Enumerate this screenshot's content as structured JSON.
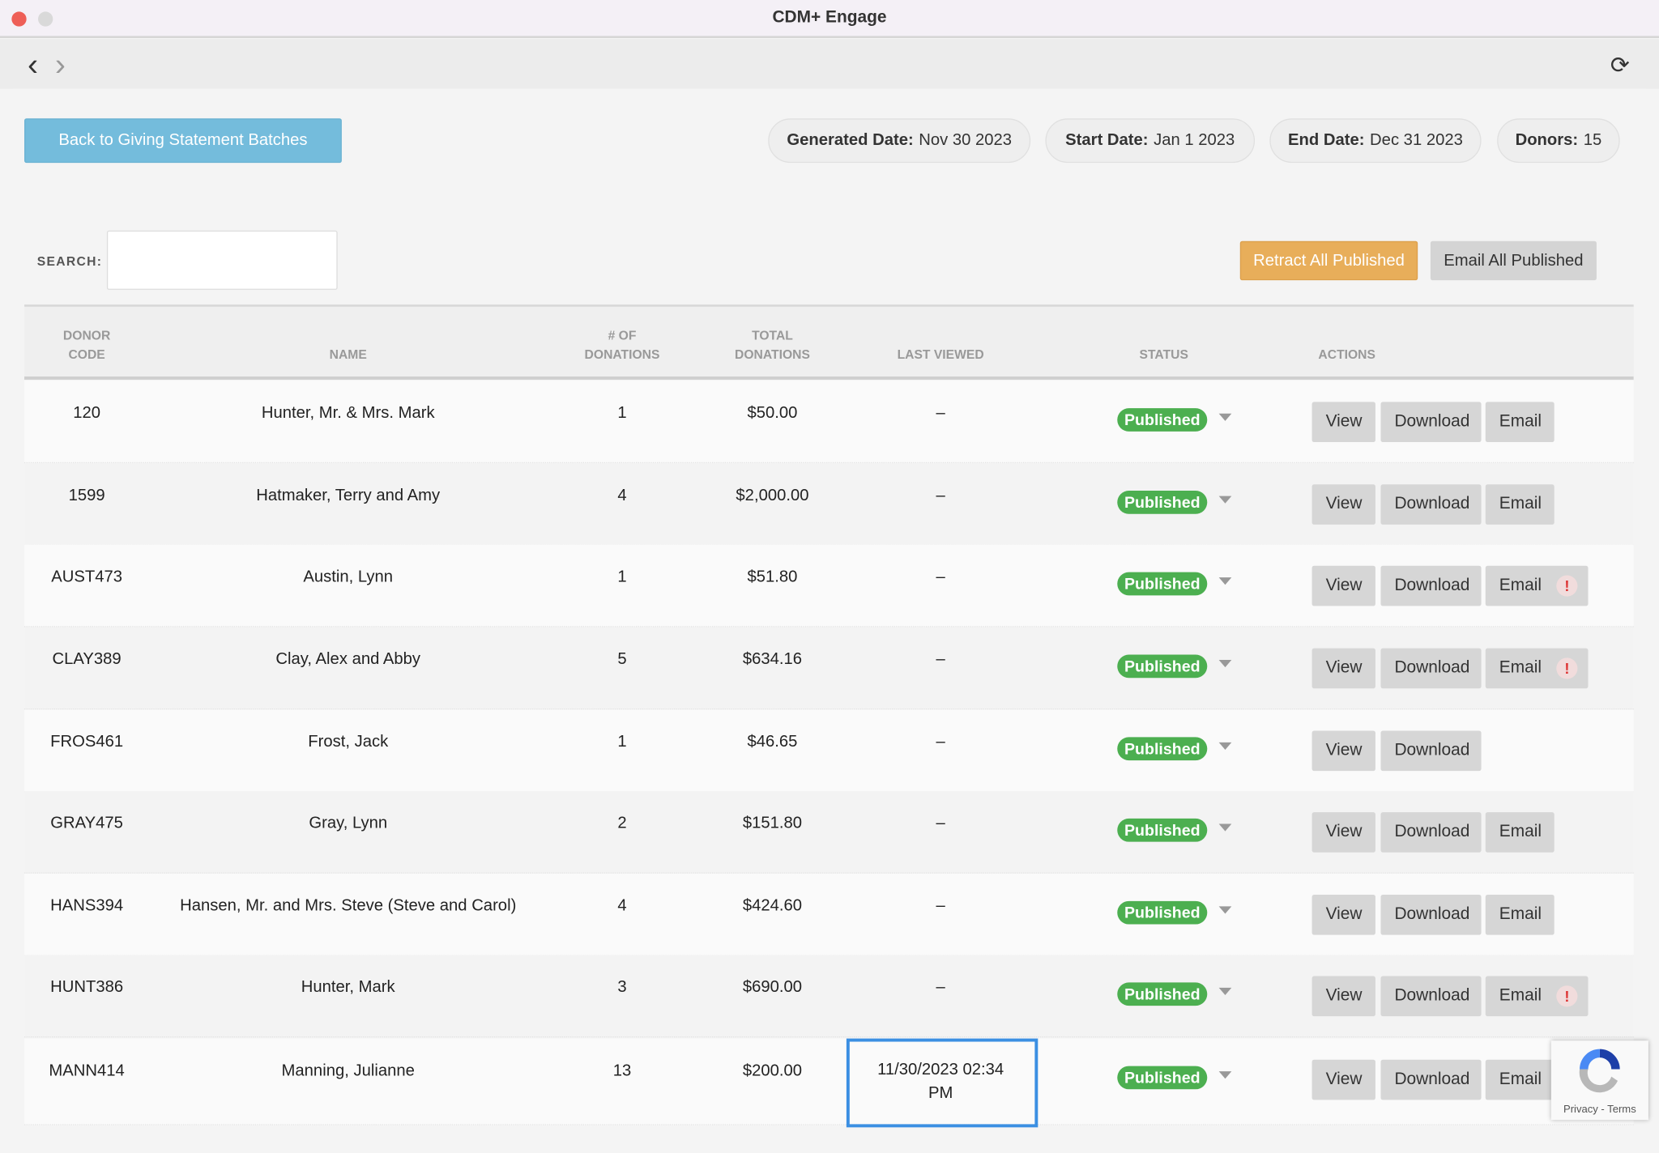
{
  "window": {
    "title": "CDM+ Engage"
  },
  "nav": {
    "back": "‹",
    "forward": "›",
    "refresh": "⟳"
  },
  "header": {
    "back_button": "Back to Giving Statement Batches",
    "generated_label": "Generated Date:",
    "generated_value": "Nov 30 2023",
    "start_label": "Start Date:",
    "start_value": "Jan 1 2023",
    "end_label": "End Date:",
    "end_value": "Dec 31 2023",
    "donors_label": "Donors:",
    "donors_value": "15"
  },
  "search": {
    "label": "SEARCH:",
    "value": "",
    "placeholder": ""
  },
  "toolbar": {
    "retract": "Retract All Published",
    "email_all": "Email All Published"
  },
  "table": {
    "headers": {
      "code_1": "DONOR",
      "code_2": "CODE",
      "name": "NAME",
      "count_1": "# OF",
      "count_2": "DONATIONS",
      "total_1": "TOTAL",
      "total_2": "DONATIONS",
      "last_viewed": "LAST VIEWED",
      "status": "STATUS",
      "actions": "ACTIONS"
    },
    "action_labels": {
      "view": "View",
      "download": "Download",
      "email": "Email",
      "warning": "!"
    },
    "rows": [
      {
        "code": "120",
        "name": "Hunter, Mr. & Mrs. Mark",
        "count": "1",
        "total": "$50.00",
        "last_viewed": "–",
        "status": "Published",
        "email": true,
        "warning": false
      },
      {
        "code": "1599",
        "name": "Hatmaker, Terry and Amy",
        "count": "4",
        "total": "$2,000.00",
        "last_viewed": "–",
        "status": "Published",
        "email": true,
        "warning": false
      },
      {
        "code": "AUST473",
        "name": "Austin, Lynn",
        "count": "1",
        "total": "$51.80",
        "last_viewed": "–",
        "status": "Published",
        "email": true,
        "warning": true
      },
      {
        "code": "CLAY389",
        "name": "Clay, Alex and Abby",
        "count": "5",
        "total": "$634.16",
        "last_viewed": "–",
        "status": "Published",
        "email": true,
        "warning": true
      },
      {
        "code": "FROS461",
        "name": "Frost, Jack",
        "count": "1",
        "total": "$46.65",
        "last_viewed": "–",
        "status": "Published",
        "email": false,
        "warning": false
      },
      {
        "code": "GRAY475",
        "name": "Gray, Lynn",
        "count": "2",
        "total": "$151.80",
        "last_viewed": "–",
        "status": "Published",
        "email": true,
        "warning": false
      },
      {
        "code": "HANS394",
        "name": "Hansen, Mr. and Mrs. Steve (Steve and Carol)",
        "count": "4",
        "total": "$424.60",
        "last_viewed": "–",
        "status": "Published",
        "email": true,
        "warning": false
      },
      {
        "code": "HUNT386",
        "name": "Hunter, Mark",
        "count": "3",
        "total": "$690.00",
        "last_viewed": "–",
        "status": "Published",
        "email": true,
        "warning": true
      },
      {
        "code": "MANN414",
        "name": "Manning, Julianne",
        "count": "13",
        "total": "$200.00",
        "last_viewed": "11/30/2023 02:34 PM",
        "status": "Published",
        "email": true,
        "warning": false
      }
    ]
  },
  "colors": {
    "published": "#4caf50",
    "back_button": "#74bcdc",
    "retract": "#e8ae5a",
    "highlight": "#3b8fe2"
  },
  "recaptcha": {
    "label": "Privacy - Terms"
  }
}
